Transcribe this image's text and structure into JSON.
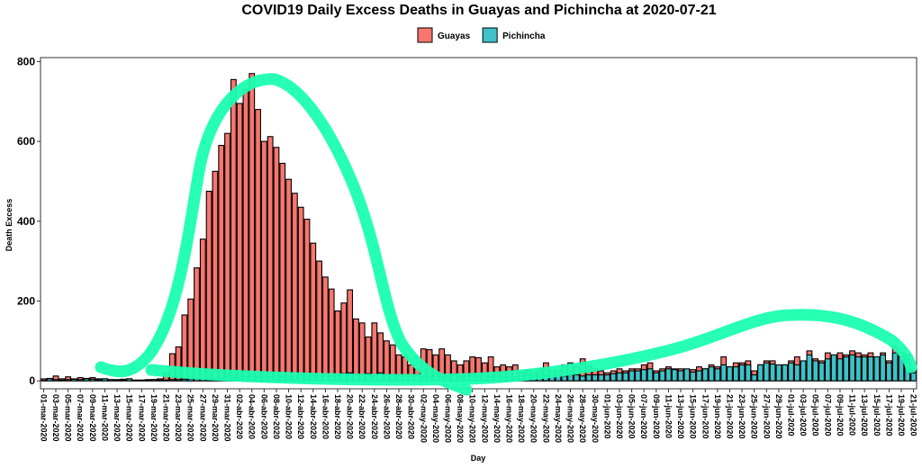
{
  "chart_data": {
    "type": "bar",
    "title": "COVID19 Daily Excess Deaths in Guayas and Pichincha at 2020-07-21",
    "xlabel": "Day",
    "ylabel": "Death Excess",
    "ylim": [
      -20,
      810
    ],
    "yticks": [
      0,
      200,
      400,
      600,
      800
    ],
    "legend": "top",
    "categories": [
      "01-mar-2020",
      null,
      "03-mar-2020",
      null,
      "05-mar-2020",
      null,
      "07-mar-2020",
      null,
      "09-mar-2020",
      null,
      "11-mar-2020",
      null,
      "13-mar-2020",
      null,
      "15-mar-2020",
      null,
      "17-mar-2020",
      null,
      "19-mar-2020",
      null,
      "21-mar-2020",
      null,
      "23-mar-2020",
      null,
      "25-mar-2020",
      null,
      "27-mar-2020",
      null,
      "29-mar-2020",
      null,
      "31-mar-2020",
      null,
      "02-abr-2020",
      null,
      "04-abr-2020",
      null,
      "06-abr-2020",
      null,
      "08-abr-2020",
      null,
      "10-abr-2020",
      null,
      "12-abr-2020",
      null,
      "14-abr-2020",
      null,
      "16-abr-2020",
      null,
      "18-abr-2020",
      null,
      "20-abr-2020",
      null,
      "22-abr-2020",
      null,
      "24-abr-2020",
      null,
      "26-abr-2020",
      null,
      "28-abr-2020",
      null,
      "30-abr-2020",
      null,
      "02-may-2020",
      null,
      "04-may-2020",
      null,
      "06-may-2020",
      null,
      "08-may-2020",
      null,
      "10-may-2020",
      null,
      "12-may-2020",
      null,
      "14-may-2020",
      null,
      "16-may-2020",
      null,
      "18-may-2020",
      null,
      "20-may-2020",
      null,
      "22-may-2020",
      null,
      "24-may-2020",
      null,
      "26-may-2020",
      null,
      "28-may-2020",
      null,
      "30-may-2020",
      null,
      "01-jun-2020",
      null,
      "03-jun-2020",
      null,
      "05-jun-2020",
      null,
      "07-jun-2020",
      null,
      "09-jun-2020",
      null,
      "11-jun-2020",
      null,
      "13-jun-2020",
      null,
      "15-jun-2020",
      null,
      "17-jun-2020",
      null,
      "19-jun-2020",
      null,
      "21-jun-2020",
      null,
      "23-jun-2020",
      null,
      "25-jun-2020",
      null,
      "27-jun-2020",
      null,
      "29-jun-2020",
      null,
      "01-jul-2020",
      null,
      "03-jul-2020",
      null,
      "05-jul-2020",
      null,
      "07-jul-2020",
      null,
      "09-jul-2020",
      null,
      "11-jul-2020",
      null,
      "13-jul-2020",
      null,
      "15-jul-2020",
      null,
      "17-jul-2020",
      null,
      "19-jul-2020",
      null,
      "21-jul-2020"
    ],
    "series": [
      {
        "name": "Guayas",
        "color": "#f8766d",
        "values": [
          5,
          6,
          12,
          5,
          10,
          5,
          8,
          6,
          8,
          5,
          5,
          3,
          3,
          4,
          5,
          2,
          2,
          3,
          3,
          5,
          20,
          68,
          85,
          165,
          205,
          283,
          355,
          475,
          525,
          590,
          620,
          755,
          695,
          730,
          770,
          680,
          600,
          612,
          585,
          545,
          505,
          470,
          435,
          405,
          345,
          300,
          260,
          230,
          175,
          195,
          228,
          155,
          145,
          110,
          145,
          120,
          100,
          90,
          65,
          60,
          40,
          30,
          80,
          78,
          65,
          80,
          65,
          50,
          40,
          50,
          60,
          58,
          45,
          60,
          35,
          40,
          35,
          40,
          20,
          25,
          20,
          30,
          45,
          25,
          25,
          40,
          45,
          35,
          55,
          35,
          30,
          25,
          20,
          25,
          30,
          25,
          30,
          30,
          40,
          45,
          25,
          30,
          35,
          30,
          30,
          25,
          28,
          35,
          30,
          40,
          35,
          60,
          35,
          45,
          45,
          50,
          25,
          40,
          50,
          50,
          30,
          40,
          50,
          60,
          45,
          75,
          55,
          50,
          70,
          55,
          70,
          65,
          75,
          70,
          65,
          70,
          60,
          70,
          50,
          85,
          70,
          65,
          25
        ]
      },
      {
        "name": "Pichincha",
        "color": "#3ec2c7",
        "values": [
          1,
          5,
          3,
          2,
          3,
          4,
          3,
          5,
          4,
          3,
          5,
          3,
          2,
          2,
          5,
          1,
          1,
          2,
          3,
          2,
          2,
          3,
          3,
          4,
          5,
          5,
          5,
          8,
          5,
          8,
          10,
          8,
          10,
          10,
          12,
          10,
          8,
          10,
          12,
          10,
          12,
          12,
          15,
          12,
          15,
          12,
          15,
          12,
          15,
          18,
          20,
          15,
          15,
          18,
          12,
          20,
          15,
          15,
          15,
          12,
          12,
          15,
          10,
          10,
          12,
          10,
          12,
          15,
          10,
          12,
          15,
          10,
          12,
          10,
          12,
          10,
          10,
          10,
          12,
          15,
          12,
          12,
          15,
          12,
          15,
          12,
          15,
          15,
          12,
          15,
          15,
          15,
          15,
          18,
          20,
          20,
          25,
          25,
          28,
          30,
          20,
          25,
          30,
          28,
          25,
          30,
          22,
          25,
          30,
          35,
          30,
          40,
          35,
          35,
          40,
          40,
          15,
          40,
          45,
          42,
          40,
          40,
          45,
          40,
          50,
          65,
          50,
          45,
          55,
          65,
          55,
          60,
          65,
          60,
          60,
          60,
          60,
          65,
          45,
          70,
          60,
          55,
          20
        ]
      }
    ]
  }
}
